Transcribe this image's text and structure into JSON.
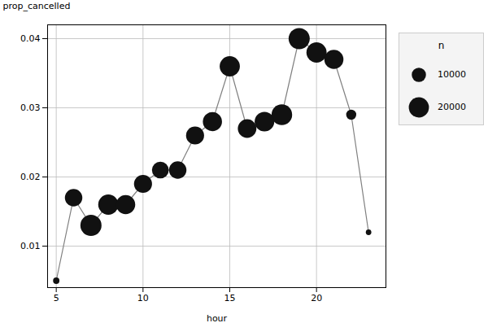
{
  "chart_data": {
    "type": "scatter",
    "line_style": "solid",
    "x": [
      5,
      6,
      7,
      8,
      9,
      10,
      11,
      12,
      13,
      14,
      15,
      16,
      17,
      18,
      19,
      20,
      21,
      22,
      23
    ],
    "values": [
      0.005,
      0.017,
      0.013,
      0.016,
      0.016,
      0.019,
      0.021,
      0.021,
      0.026,
      0.028,
      0.036,
      0.027,
      0.028,
      0.029,
      0.04,
      0.038,
      0.037,
      0.029,
      0.012
    ],
    "sizes": [
      2000,
      15000,
      22000,
      20000,
      18000,
      16000,
      14000,
      15000,
      16000,
      18000,
      20000,
      17000,
      19000,
      21000,
      22000,
      20000,
      18000,
      5000,
      1500
    ],
    "color": "#111111",
    "xlabel": "hour",
    "ylabel": "prop_cancelled",
    "xlim": [
      4.5,
      24
    ],
    "ylim": [
      0.004,
      0.042
    ],
    "xticks": [
      5,
      10,
      15,
      20
    ],
    "yticks": [
      0.01,
      0.02,
      0.03,
      0.04
    ],
    "grid": true,
    "legend": "right",
    "legend_title": "n",
    "legend_sizes": [
      10000,
      20000
    ]
  }
}
